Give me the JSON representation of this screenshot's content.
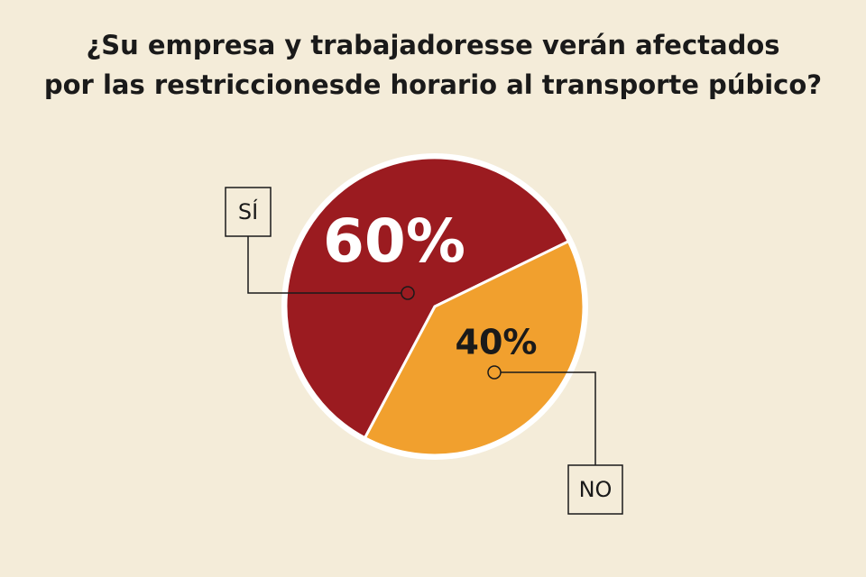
{
  "chart_data": {
    "type": "pie",
    "title": [
      "¿Su empresa y trabajadoresse verán afectados",
      "por las restriccionesde horario al transporte púbico?"
    ],
    "categories": [
      "SÍ",
      "NO"
    ],
    "values": [
      60,
      40
    ],
    "value_labels": [
      "60%",
      "40%"
    ],
    "colors": [
      "#9b1b20",
      "#f1a02e"
    ]
  }
}
